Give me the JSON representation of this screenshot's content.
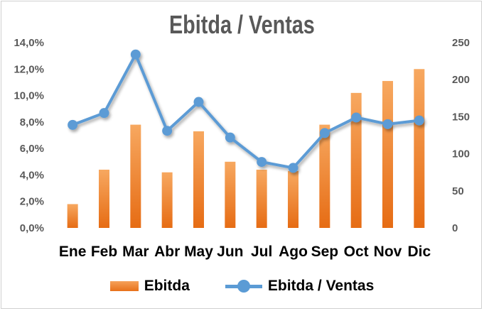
{
  "chart_data": {
    "type": "bar+line",
    "title": "Ebitda / Ventas",
    "categories": [
      "Ene",
      "Feb",
      "Mar",
      "Abr",
      "May",
      "Jun",
      "Jul",
      "Ago",
      "Sep",
      "Oct",
      "Nov",
      "Dic"
    ],
    "series": [
      {
        "name": "Ebitda",
        "type": "bar",
        "axis": "left",
        "color": "#ed7d31",
        "values": [
          1.8,
          4.4,
          7.8,
          4.2,
          7.3,
          5.0,
          4.4,
          4.3,
          7.8,
          10.2,
          11.1,
          12.0
        ]
      },
      {
        "name": "Ebitda / Ventas",
        "type": "line",
        "axis": "right",
        "color": "#5b9bd5",
        "values": [
          139,
          155,
          234,
          131,
          170,
          122,
          89,
          81,
          128,
          149,
          140,
          145
        ]
      }
    ],
    "y_left": {
      "min": 0,
      "max": 14,
      "step": 2,
      "tick_labels": [
        "0,0%",
        "2,0%",
        "4,0%",
        "6,0%",
        "8,0%",
        "10,0%",
        "12,0%",
        "14,0%"
      ]
    },
    "y_right": {
      "min": 0,
      "max": 250,
      "step": 50,
      "tick_labels": [
        "0",
        "50",
        "100",
        "150",
        "200",
        "250"
      ]
    },
    "grid": false,
    "legend_position": "bottom"
  }
}
